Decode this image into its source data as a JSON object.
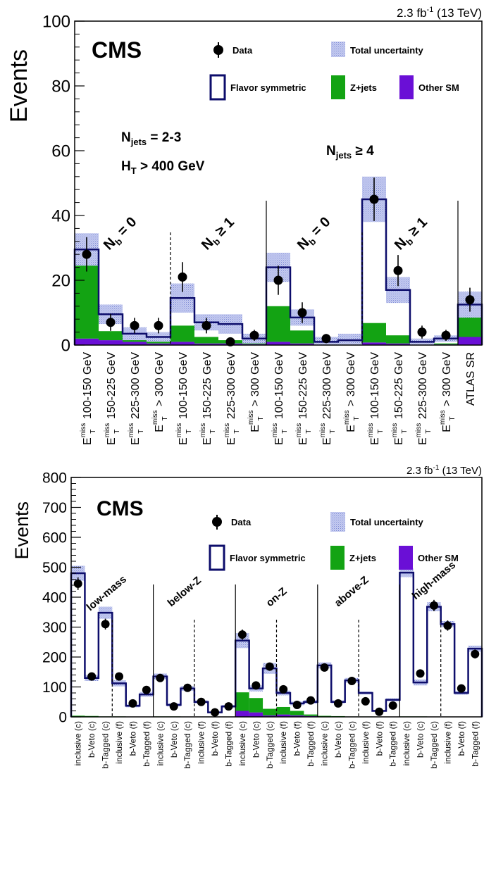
{
  "colors": {
    "flavor": "#0d0d6b",
    "zjets": "#13a313",
    "other": "#6a0fd6",
    "unc": "#aab4e8",
    "data": "#000000"
  },
  "chart_data": [
    {
      "type": "bar",
      "lumi": "2.3 fb",
      "lumi_sup": "-1",
      "energy": " (13 TeV)",
      "experiment": "CMS",
      "ylabel": "Events",
      "ylim": [
        0,
        100
      ],
      "y_ticks": [
        "0",
        "20",
        "40",
        "60",
        "80",
        "100"
      ],
      "legend": {
        "data": "Data",
        "unc": "Total uncertainty",
        "flavor": "Flavor symmetric",
        "zjets": "Z+jets",
        "other": "Other SM"
      },
      "annotations": {
        "njets23": "N",
        "njets23_sub": "jets",
        "njets23_rest": " = 2-3",
        "ht": "H",
        "ht_sub": "T",
        "ht_rest": " > 400 GeV",
        "njets4": "N",
        "njets4_sub": "jets",
        "njets4_rest": " ≥ 4",
        "nb0": "N",
        "nb0_sub": "b",
        "nb0_rest": " = 0",
        "nb1": "N",
        "nb1_sub": "b",
        "nb1_rest": " ≥ 1"
      },
      "met_prefix": "E",
      "met_sup": "miss",
      "met_sub": "T",
      "categories": [
        "100-150 GeV",
        "150-225 GeV",
        "225-300 GeV",
        "> 300 GeV",
        "100-150 GeV",
        "150-225 GeV",
        "225-300 GeV",
        "> 300 GeV",
        "100-150 GeV",
        "150-225 GeV",
        "225-300 GeV",
        "> 300 GeV",
        "100-150 GeV",
        "150-225 GeV",
        "225-300 GeV",
        "> 300 GeV",
        "ATLAS SR"
      ],
      "series": [
        {
          "name": "Data",
          "values": [
            28,
            7,
            6,
            6,
            21,
            6,
            1,
            3,
            20,
            10,
            2,
            0,
            45,
            23,
            4,
            3,
            14
          ],
          "errors": [
            5.3,
            2.6,
            2.4,
            2.4,
            4.6,
            2.4,
            1.0,
            1.7,
            4.5,
            3.2,
            1.4,
            0,
            6.7,
            4.8,
            2.0,
            1.7,
            3.7
          ]
        },
        {
          "name": "Flavor symmetric",
          "values": [
            29.5,
            9.5,
            3.5,
            2.5,
            14.5,
            7,
            6.5,
            2,
            24,
            8.5,
            1,
            1.5,
            45,
            17,
            1,
            2,
            12.5
          ]
        },
        {
          "name": "Total uncertainty",
          "values": [
            5,
            3,
            2,
            1.5,
            4.5,
            2.5,
            3,
            1.5,
            4.5,
            2.5,
            1.5,
            2,
            7,
            4,
            1,
            1,
            4
          ]
        },
        {
          "name": "Z+jets",
          "values": [
            25,
            2.8,
            1.5,
            1,
            5,
            2,
            1,
            0.5,
            11,
            4,
            0.5,
            0.3,
            6,
            2.5,
            0.5,
            0.3,
            6
          ]
        },
        {
          "name": "Other SM",
          "values": [
            2,
            1.5,
            1,
            0.5,
            1,
            0.5,
            0.5,
            0.3,
            1,
            0.5,
            0.3,
            0.2,
            0.8,
            0.5,
            0.3,
            0.2,
            2.5
          ]
        }
      ]
    },
    {
      "type": "bar",
      "lumi": "2.3 fb",
      "lumi_sup": "-1",
      "energy": " (13 TeV)",
      "experiment": "CMS",
      "ylabel": "Events",
      "ylim": [
        0,
        800
      ],
      "y_ticks": [
        "0",
        "100",
        "200",
        "300",
        "400",
        "500",
        "600",
        "700",
        "800"
      ],
      "legend": {
        "data": "Data",
        "unc": "Total uncertainty",
        "flavor": "Flavor symmetric",
        "zjets": "Z+jets",
        "other": "Other SM"
      },
      "region_labels": [
        "low-mass",
        "below-Z",
        "on-Z",
        "above-Z",
        "high-mass"
      ],
      "categories": [
        "inclusive (c)",
        "b-Veto (c)",
        "b-Tagged (c)",
        "inclusive (f)",
        "b-Veto (f)",
        "b-Tagged (f)",
        "inclusive (c)",
        "b-Veto (c)",
        "b-Tagged (c)",
        "inclusive (f)",
        "b-Veto (f)",
        "b-Tagged (f)",
        "inclusive (c)",
        "b-Veto (c)",
        "b-Tagged (c)",
        "inclusive (f)",
        "b-Veto (f)",
        "b-Tagged (f)",
        "inclusive (c)",
        "b-Veto (c)",
        "b-Tagged (c)",
        "inclusive (f)",
        "b-Veto (f)",
        "b-Tagged (f)",
        "inclusive (c)",
        "b-Veto (c)",
        "b-Tagged (c)",
        "inclusive (f)",
        "b-Veto (f)",
        "b-Tagged (f)"
      ],
      "series": [
        {
          "name": "Data",
          "values": [
            445,
            135,
            310,
            135,
            45,
            90,
            130,
            35,
            97,
            50,
            15,
            35,
            275,
            105,
            168,
            92,
            40,
            55,
            165,
            45,
            120,
            52,
            17,
            38,
            518,
            145,
            372,
            305,
            95,
            210
          ],
          "errors": [
            21,
            12,
            18,
            12,
            7,
            10,
            11,
            6,
            10,
            7,
            4,
            6,
            17,
            10,
            13,
            10,
            6,
            7,
            13,
            7,
            11,
            7,
            4,
            6,
            23,
            12,
            19,
            17,
            10,
            15
          ]
        },
        {
          "name": "Flavor symmetric",
          "values": [
            480,
            130,
            348,
            112,
            37,
            75,
            135,
            40,
            95,
            50,
            15,
            35,
            255,
            95,
            162,
            80,
            45,
            50,
            172,
            50,
            122,
            80,
            20,
            57,
            482,
            115,
            368,
            310,
            80,
            228
          ]
        },
        {
          "name": "Total uncertainty",
          "values": [
            25,
            10,
            20,
            10,
            5,
            8,
            10,
            5,
            8,
            5,
            3,
            5,
            25,
            10,
            18,
            8,
            6,
            6,
            10,
            5,
            8,
            5,
            3,
            5,
            15,
            10,
            15,
            10,
            6,
            10
          ]
        },
        {
          "name": "Z+jets",
          "values": [
            3,
            2,
            1,
            1,
            0.5,
            0.5,
            1,
            1,
            0.5,
            0.5,
            0.3,
            0.3,
            62,
            48,
            22,
            25,
            15,
            5,
            3,
            2,
            1,
            1,
            0.5,
            0.5,
            1,
            1,
            0.5,
            0.5,
            0.3,
            0.3
          ]
        },
        {
          "name": "Other SM",
          "values": [
            1,
            1,
            0.5,
            0.5,
            0.3,
            0.3,
            0.5,
            0.5,
            0.3,
            0.3,
            0.2,
            0.2,
            20,
            15,
            5,
            8,
            5,
            3,
            0.5,
            0.5,
            0.3,
            0.3,
            0.2,
            0.2,
            0.5,
            0.5,
            0.3,
            0.3,
            0.2,
            0.2
          ]
        }
      ]
    }
  ]
}
